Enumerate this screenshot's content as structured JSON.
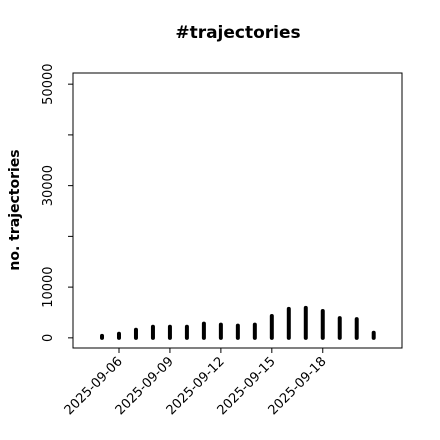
{
  "chart_data": {
    "type": "vlines",
    "title": "#trajectories",
    "y_label": "no. trajectories",
    "x": [
      "2025-09-05",
      "2025-09-06",
      "2025-09-07",
      "2025-09-08",
      "2025-09-09",
      "2025-09-10",
      "2025-09-11",
      "2025-09-12",
      "2025-09-13",
      "2025-09-14",
      "2025-09-15",
      "2025-09-16",
      "2025-09-17",
      "2025-09-18",
      "2025-09-19",
      "2025-09-20",
      "2025-09-21"
    ],
    "values": [
      400,
      800,
      1600,
      2200,
      2200,
      2200,
      2800,
      2600,
      2400,
      2600,
      4300,
      5700,
      5900,
      5300,
      3900,
      3700,
      1000
    ],
    "color": "#000000",
    "xlim": [
      "2025-09-03T07:00",
      "2025-09-22T16:00"
    ],
    "xticks": [
      "2025-09-06",
      "2025-09-09",
      "2025-09-12",
      "2025-09-15",
      "2025-09-18"
    ],
    "ylim": [
      -2000,
      52200
    ],
    "yticks": [
      0,
      10000,
      30000,
      50000
    ],
    "yticks_minor": [
      20000,
      40000
    ]
  }
}
